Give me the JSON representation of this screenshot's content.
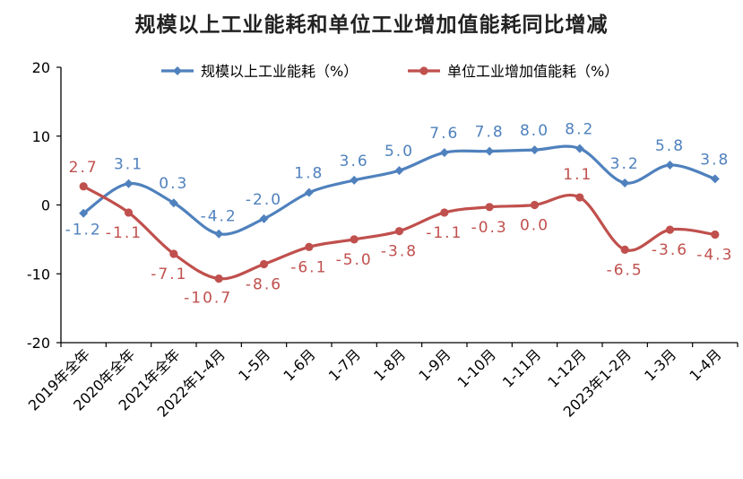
{
  "chart_data": {
    "type": "line",
    "title": "规模以上工业能耗和单位工业增加值能耗同比增减",
    "xlabel": "",
    "ylabel": "",
    "ylim": [
      -20,
      20
    ],
    "yticks": [
      "20",
      "10",
      "0",
      "-10",
      "-20"
    ],
    "yticks_values": [
      20,
      10,
      0,
      -10,
      -20
    ],
    "categories": [
      "2019年全年",
      "2020年全年",
      "2021年全年",
      "2022年1-4月",
      "1-5月",
      "1-6月",
      "1-7月",
      "1-8月",
      "1-9月",
      "1-10月",
      "1-11月",
      "1-12月",
      "2023年1-2月",
      "1-3月",
      "1-4月"
    ],
    "legend_position": "top",
    "grid": false,
    "series": [
      {
        "name": "规模以上工业能耗（%）",
        "color": "#4F81BD",
        "values": [
          -1.2,
          3.1,
          0.3,
          -4.2,
          -2.0,
          1.8,
          3.6,
          5.0,
          7.6,
          7.8,
          8.0,
          8.2,
          3.2,
          5.8,
          3.8
        ],
        "labels": [
          "-1.2",
          "3.1",
          "0.3",
          "-4.2",
          "-2.0",
          "1.8",
          "3.6",
          "5.0",
          "7.6",
          "7.8",
          "8.0",
          "8.2",
          "3.2",
          "5.8",
          "3.8"
        ]
      },
      {
        "name": "单位工业增加值能耗（%）",
        "color": "#C0504D",
        "values": [
          2.7,
          -1.1,
          -7.1,
          -10.7,
          -8.6,
          -6.1,
          -5.0,
          -3.8,
          -1.1,
          -0.3,
          0.0,
          1.1,
          -6.5,
          -3.6,
          -4.3
        ],
        "labels": [
          "2.7",
          "-1.1",
          "-7.1",
          "-10.7",
          "-8.6",
          "-6.1",
          "-5.0",
          "-3.8",
          "-1.1",
          "-0.3",
          "0.0",
          "1.1",
          "-6.5",
          "-3.6",
          "-4.3"
        ]
      }
    ]
  }
}
